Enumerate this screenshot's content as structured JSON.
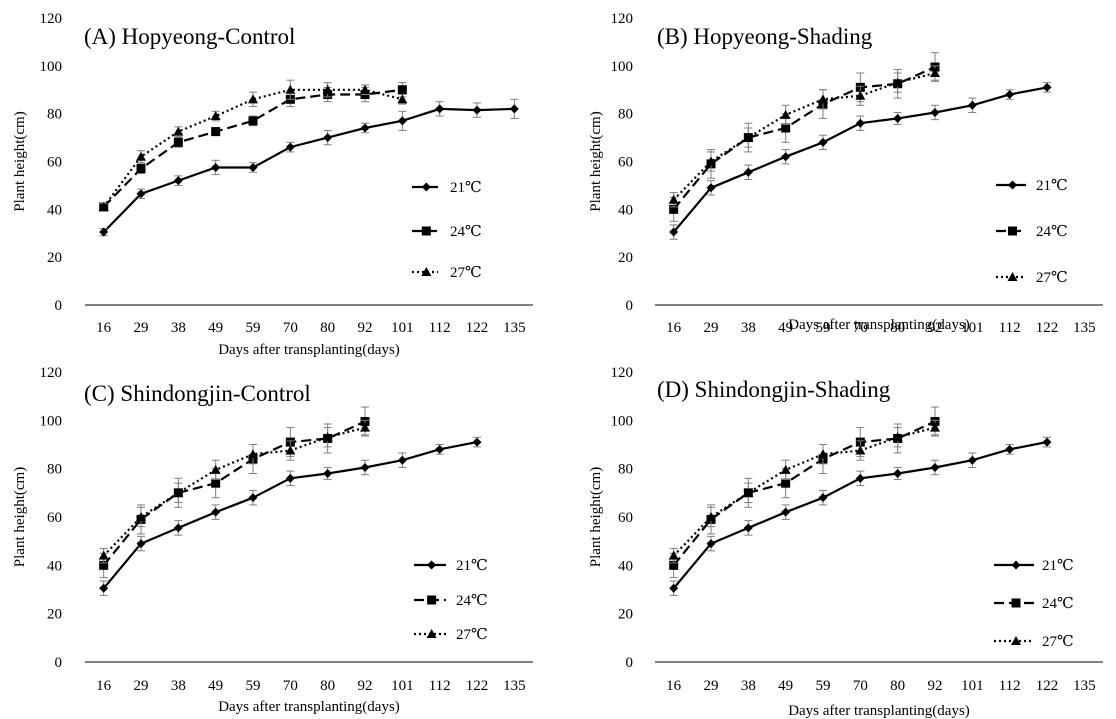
{
  "chart_data": [
    {
      "type": "line",
      "title": "(A) Hopyeong-Control",
      "xlabel": "Days after transplanting(days)",
      "ylabel": "Plant height(cm)",
      "categories": [
        "16",
        "29",
        "38",
        "49",
        "59",
        "70",
        "80",
        "92",
        "101",
        "112",
        "122",
        "135"
      ],
      "ylim": [
        0,
        120
      ],
      "yticks": [
        0,
        20,
        40,
        60,
        80,
        100,
        120
      ],
      "grid": false,
      "legend_position": "right",
      "series": [
        {
          "name": "21℃",
          "marker": "diamond",
          "dash": "solid",
          "values": [
            30.5,
            46.5,
            52,
            57.5,
            57.5,
            66,
            70,
            74,
            77,
            82,
            81.5,
            82
          ],
          "errors": [
            1.5,
            2,
            2,
            3,
            2,
            2,
            3,
            2,
            4,
            3,
            3,
            4
          ]
        },
        {
          "name": "24℃",
          "marker": "square",
          "dash": "dashed",
          "values": [
            41,
            57,
            68,
            72.5,
            77,
            86,
            88,
            88,
            90,
            null,
            null,
            null
          ],
          "errors": [
            1.5,
            2,
            2,
            1.5,
            2,
            3,
            3,
            3,
            3,
            null,
            null,
            null
          ]
        },
        {
          "name": "27℃",
          "marker": "triangle",
          "dash": "dotted",
          "values": [
            41,
            62,
            72.5,
            79,
            86,
            90,
            90,
            90,
            86,
            null,
            null,
            null
          ],
          "errors": [
            1.5,
            2.5,
            2,
            2,
            3,
            4,
            3,
            2,
            2,
            null,
            null,
            null
          ]
        }
      ]
    },
    {
      "type": "line",
      "title": "(B) Hopyeong-Shading",
      "xlabel": "Days after transplanting(days)",
      "ylabel": "Plant height(cm)",
      "categories": [
        "16",
        "29",
        "38",
        "49",
        "59",
        "70",
        "80",
        "92",
        "101",
        "112",
        "122",
        "135"
      ],
      "ylim": [
        0,
        120
      ],
      "yticks": [
        0,
        20,
        40,
        60,
        80,
        100,
        120
      ],
      "grid": false,
      "legend_position": "right",
      "series": [
        {
          "name": "21℃",
          "marker": "diamond",
          "dash": "solid",
          "values": [
            30.5,
            49,
            55.5,
            62,
            68,
            76,
            78,
            80.5,
            83.5,
            88,
            91,
            null
          ],
          "errors": [
            3,
            3,
            3,
            3,
            3,
            3,
            2.5,
            3,
            3,
            2,
            2,
            null
          ]
        },
        {
          "name": "24℃",
          "marker": "square",
          "dash": "dashed",
          "values": [
            40,
            59,
            70,
            74,
            84,
            91,
            92.5,
            99.5,
            null,
            null,
            null,
            null
          ],
          "errors": [
            5,
            6,
            6,
            6,
            6,
            6,
            6,
            6,
            null,
            null,
            null,
            null
          ]
        },
        {
          "name": "27℃",
          "marker": "triangle",
          "dash": "dotted",
          "values": [
            44,
            60,
            70,
            79.5,
            86,
            87.5,
            93,
            97,
            null,
            null,
            null,
            null
          ],
          "errors": [
            3,
            4,
            4,
            4,
            4,
            4,
            4,
            3,
            null,
            null,
            null,
            null
          ]
        }
      ]
    },
    {
      "type": "line",
      "title": "(C) Shindongjin-Control",
      "xlabel": "Days after transplanting(days)",
      "ylabel": "Plant height(cm)",
      "categories": [
        "16",
        "29",
        "38",
        "49",
        "59",
        "70",
        "80",
        "92",
        "101",
        "112",
        "122",
        "135"
      ],
      "ylim": [
        0,
        120
      ],
      "yticks": [
        0,
        20,
        40,
        60,
        80,
        100,
        120
      ],
      "grid": false,
      "legend_position": "right",
      "series": [
        {
          "name": "21℃",
          "marker": "diamond",
          "dash": "solid",
          "values": [
            30.5,
            49,
            55.5,
            62,
            68,
            76,
            78,
            80.5,
            83.5,
            88,
            91,
            null
          ],
          "errors": [
            3,
            3,
            3,
            3,
            3,
            3,
            2.5,
            3,
            3,
            2,
            2,
            null
          ]
        },
        {
          "name": "24℃",
          "marker": "square",
          "dash": "dashed",
          "values": [
            40,
            59,
            70,
            74,
            84,
            91,
            92.5,
            99.5,
            null,
            null,
            null,
            null
          ],
          "errors": [
            5,
            6,
            6,
            6,
            6,
            6,
            6,
            6,
            null,
            null,
            null,
            null
          ]
        },
        {
          "name": "27℃",
          "marker": "triangle",
          "dash": "dotted",
          "values": [
            44,
            60,
            70,
            79.5,
            86,
            87.5,
            93,
            97,
            null,
            null,
            null,
            null
          ],
          "errors": [
            3,
            4,
            4,
            4,
            4,
            4,
            4,
            3,
            null,
            null,
            null,
            null
          ]
        }
      ]
    },
    {
      "type": "line",
      "title": "(D) Shindongjin-Shading",
      "xlabel": "Days after transplanting(days)",
      "ylabel": "Plant height(cm)",
      "categories": [
        "16",
        "29",
        "38",
        "49",
        "59",
        "70",
        "80",
        "92",
        "101",
        "112",
        "122",
        "135"
      ],
      "ylim": [
        0,
        120
      ],
      "yticks": [
        0,
        20,
        40,
        60,
        80,
        100,
        120
      ],
      "grid": false,
      "legend_position": "right",
      "series": [
        {
          "name": "21℃",
          "marker": "diamond",
          "dash": "solid",
          "values": [
            30.5,
            49,
            55.5,
            62,
            68,
            76,
            78,
            80.5,
            83.5,
            88,
            91,
            null
          ],
          "errors": [
            3,
            3,
            3,
            3,
            3,
            3,
            2.5,
            3,
            3,
            2,
            2,
            null
          ]
        },
        {
          "name": "24℃",
          "marker": "square",
          "dash": "dashed",
          "values": [
            40,
            59,
            70,
            74,
            84,
            91,
            92.5,
            99.5,
            null,
            null,
            null,
            null
          ],
          "errors": [
            5,
            6,
            6,
            6,
            6,
            6,
            6,
            6,
            null,
            null,
            null,
            null
          ]
        },
        {
          "name": "27℃",
          "marker": "triangle",
          "dash": "dotted",
          "values": [
            44,
            60,
            70,
            79.5,
            86,
            87.5,
            93,
            97,
            null,
            null,
            null,
            null
          ],
          "errors": [
            3,
            4,
            4,
            4,
            4,
            4,
            4,
            3,
            null,
            null,
            null,
            null
          ]
        }
      ]
    }
  ]
}
